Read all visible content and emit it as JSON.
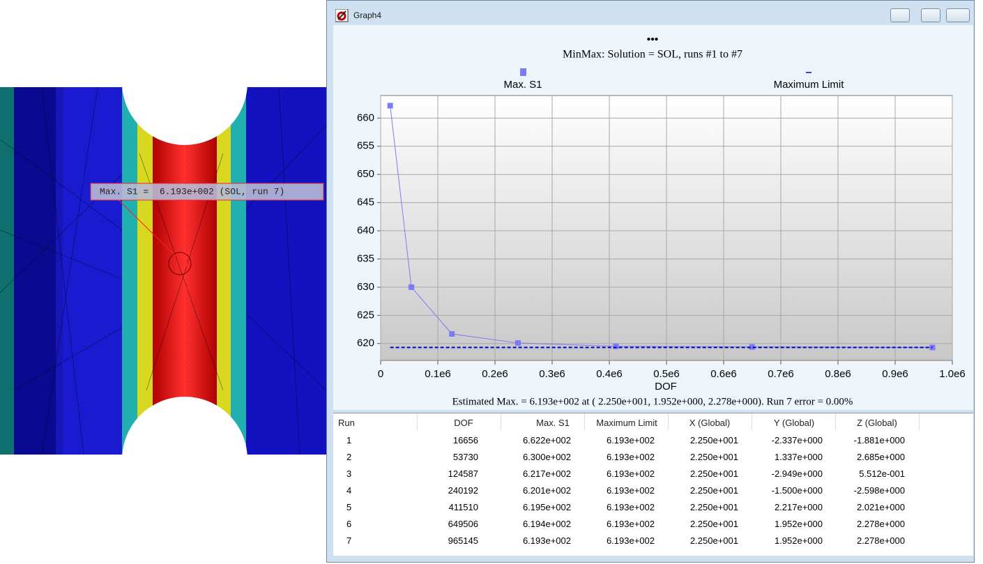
{
  "window": {
    "title": "Graph4"
  },
  "model_label": "Max. S1 =  6.193e+002 (SOL, run 7)",
  "chart_data": {
    "type": "line",
    "header": "•••",
    "title": "MinMax: Solution = SOL, runs #1 to #7",
    "xlabel": "DOF",
    "x": [
      16656,
      53730,
      124587,
      240192,
      411510,
      649506,
      965145
    ],
    "series": [
      {
        "name": "Max. S1",
        "color": "#7b7bf5",
        "marker": "square",
        "values": [
          662.2,
          630.0,
          621.7,
          620.1,
          619.5,
          619.4,
          619.3
        ]
      },
      {
        "name": "Maximum Limit",
        "color": "#0000c8",
        "dashed": true,
        "values": [
          619.3,
          619.3,
          619.3,
          619.3,
          619.3,
          619.3,
          619.3
        ]
      }
    ],
    "xlim": [
      0,
      1000000
    ],
    "xticks": [
      0,
      {
        "value": 100000,
        "label": "0.1e6"
      },
      {
        "value": 200000,
        "label": "0.2e6"
      },
      {
        "value": 300000,
        "label": "0.3e6"
      },
      {
        "value": 400000,
        "label": "0.4e6"
      },
      {
        "value": 500000,
        "label": "0.5e6"
      },
      {
        "value": 600000,
        "label": "0.6e6"
      },
      {
        "value": 700000,
        "label": "0.7e6"
      },
      {
        "value": 800000,
        "label": "0.8e6"
      },
      {
        "value": 900000,
        "label": "0.9e6"
      },
      {
        "value": 1000000,
        "label": "1.0e6"
      }
    ],
    "ylim": [
      617,
      664
    ],
    "yticks": [
      620,
      625,
      630,
      635,
      640,
      645,
      650,
      655,
      660
    ],
    "grid": true,
    "annotation": "Estimated Max. =  6.193e+002 at ( 2.250e+001, 1.952e+000, 2.278e+000). Run 7 error =  0.00%"
  },
  "table": {
    "columns": [
      "Run",
      "DOF",
      "Max. S1",
      "Maximum Limit",
      "X (Global)",
      "Y (Global)",
      "Z (Global)"
    ],
    "rows": [
      [
        "1",
        "16656",
        "6.622e+002",
        "6.193e+002",
        "2.250e+001",
        "-2.337e+000",
        "-1.881e+000"
      ],
      [
        "2",
        "53730",
        "6.300e+002",
        "6.193e+002",
        "2.250e+001",
        "1.337e+000",
        "2.685e+000"
      ],
      [
        "3",
        "124587",
        "6.217e+002",
        "6.193e+002",
        "2.250e+001",
        "-2.949e+000",
        "5.512e-001"
      ],
      [
        "4",
        "240192",
        "6.201e+002",
        "6.193e+002",
        "2.250e+001",
        "-1.500e+000",
        "-2.598e+000"
      ],
      [
        "5",
        "411510",
        "6.195e+002",
        "6.193e+002",
        "2.250e+001",
        "2.217e+000",
        "2.021e+000"
      ],
      [
        "6",
        "649506",
        "6.194e+002",
        "6.193e+002",
        "2.250e+001",
        "1.952e+000",
        "2.278e+000"
      ],
      [
        "7",
        "965145",
        "6.193e+002",
        "6.193e+002",
        "2.250e+001",
        "1.952e+000",
        "2.278e+000"
      ]
    ]
  }
}
